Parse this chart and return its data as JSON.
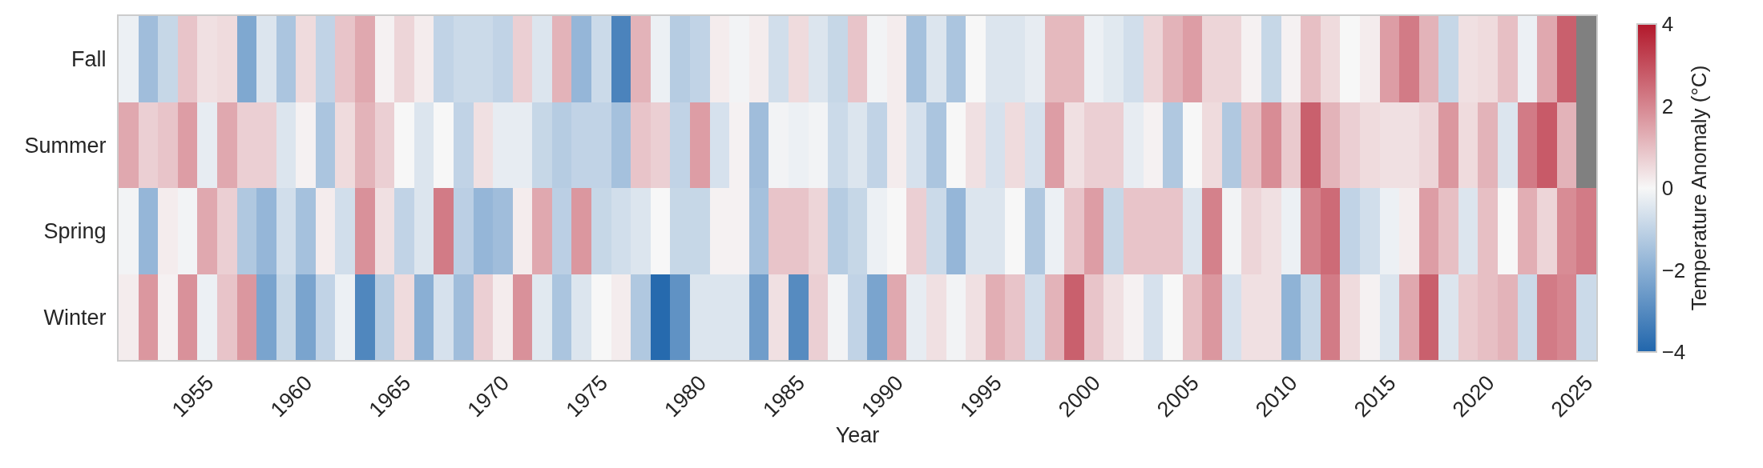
{
  "chart_data": {
    "type": "heatmap",
    "xlabel": "Year",
    "clabel": "Temperature Anomaly (°C)",
    "x": [
      1951,
      1952,
      1953,
      1954,
      1955,
      1956,
      1957,
      1958,
      1959,
      1960,
      1961,
      1962,
      1963,
      1964,
      1965,
      1966,
      1967,
      1968,
      1969,
      1970,
      1971,
      1972,
      1973,
      1974,
      1975,
      1976,
      1977,
      1978,
      1979,
      1980,
      1981,
      1982,
      1983,
      1984,
      1985,
      1986,
      1987,
      1988,
      1989,
      1990,
      1991,
      1992,
      1993,
      1994,
      1995,
      1996,
      1997,
      1998,
      1999,
      2000,
      2001,
      2002,
      2003,
      2004,
      2005,
      2006,
      2007,
      2008,
      2009,
      2010,
      2011,
      2012,
      2013,
      2014,
      2015,
      2016,
      2017,
      2018,
      2019,
      2020,
      2021,
      2022,
      2023,
      2024,
      2025
    ],
    "xlim": [
      1950.5,
      2025.5
    ],
    "xticks": [
      1955,
      1960,
      1965,
      1970,
      1975,
      1980,
      1985,
      1990,
      1995,
      2000,
      2005,
      2010,
      2015,
      2020,
      2025
    ],
    "y_categories": [
      "Fall",
      "Summer",
      "Spring",
      "Winter"
    ],
    "cells": [
      [
        -0.2,
        -1.6,
        -0.9,
        0.9,
        0.4,
        0.5,
        -2.2,
        -0.5,
        -1.4,
        0.5,
        -1.0,
        0.9,
        1.4,
        0.1,
        0.6,
        0.2,
        -1.0,
        -0.8,
        -0.8,
        -1.0,
        0.7,
        -0.5,
        1.2,
        -1.8,
        -0.8,
        -3.2,
        1.2,
        -0.2,
        -1.2,
        -1.0,
        0.2,
        -0.1,
        0.2,
        -0.7,
        0.5,
        -0.5,
        -0.9,
        0.9,
        -0.1,
        0.2,
        -1.5,
        -0.5,
        -1.4,
        0.0,
        -0.5,
        -0.5,
        -0.3,
        1.1,
        1.1,
        -0.2,
        -0.4,
        -0.7,
        0.6,
        1.2,
        1.6,
        0.6,
        0.6,
        0.1,
        -0.9,
        0.1,
        1.0,
        0.5,
        0.0,
        0.2,
        1.6,
        2.2,
        1.2,
        -0.9,
        0.4,
        0.5,
        1.0,
        -0.2,
        1.4,
        2.7,
        null
      ],
      [
        1.4,
        0.7,
        0.9,
        1.6,
        -0.3,
        1.4,
        0.7,
        0.7,
        -0.5,
        0.1,
        -1.4,
        0.5,
        1.2,
        0.7,
        0.0,
        -0.5,
        0.0,
        -1.0,
        0.4,
        -0.3,
        -0.3,
        -0.9,
        -1.2,
        -1.0,
        -1.0,
        -1.5,
        0.9,
        0.7,
        -1.0,
        1.6,
        -0.6,
        0.1,
        -1.6,
        -0.1,
        -0.2,
        -0.1,
        -0.8,
        -0.5,
        -1.0,
        0.2,
        -0.6,
        -1.4,
        0.0,
        0.4,
        -0.6,
        0.5,
        -0.6,
        1.6,
        0.4,
        0.7,
        0.7,
        -0.3,
        0.1,
        -1.3,
        0.0,
        0.5,
        -1.3,
        1.0,
        1.9,
        0.8,
        2.7,
        1.2,
        0.7,
        0.5,
        0.4,
        0.4,
        0.6,
        1.7,
        0.5,
        1.2,
        -0.5,
        2.2,
        2.8,
        1.2,
        null
      ],
      [
        -0.1,
        -1.8,
        0.2,
        -0.1,
        1.4,
        0.7,
        -1.3,
        -1.8,
        -0.7,
        -1.5,
        0.2,
        -0.7,
        1.8,
        0.4,
        -1.0,
        -0.5,
        2.2,
        -1.1,
        -1.8,
        -1.6,
        0.2,
        1.4,
        -1.1,
        1.7,
        -0.9,
        -0.7,
        -0.5,
        0.0,
        -0.9,
        -0.9,
        0.1,
        0.1,
        -1.5,
        0.9,
        0.9,
        0.6,
        -1.2,
        -0.9,
        -0.2,
        0.0,
        0.7,
        -0.8,
        -1.8,
        -0.5,
        -0.5,
        0.0,
        -1.3,
        -0.2,
        0.9,
        1.6,
        -0.9,
        0.9,
        0.9,
        0.9,
        -0.5,
        2.1,
        -0.1,
        0.6,
        0.4,
        -0.2,
        2.1,
        2.5,
        -1.0,
        -0.7,
        -0.2,
        0.2,
        1.6,
        1.0,
        -0.5,
        1.0,
        0.0,
        1.3,
        0.6,
        1.9,
        2.2
      ],
      [
        0.2,
        1.7,
        0.1,
        1.8,
        -0.2,
        0.9,
        1.7,
        -2.3,
        -0.9,
        -2.3,
        -1.0,
        -0.2,
        -3.1,
        -1.2,
        0.5,
        -2.0,
        -0.6,
        -1.6,
        0.7,
        0.2,
        1.8,
        -0.4,
        -1.4,
        -0.5,
        0.0,
        0.2,
        -1.3,
        -3.9,
        -2.8,
        -0.5,
        -0.5,
        -0.5,
        -2.5,
        0.4,
        -3.0,
        0.7,
        -0.1,
        -1.0,
        -2.3,
        1.4,
        -0.3,
        0.4,
        -0.1,
        0.4,
        1.3,
        0.9,
        -0.7,
        1.2,
        2.7,
        0.9,
        0.4,
        0.1,
        -0.6,
        0.0,
        1.0,
        1.7,
        -0.6,
        0.4,
        0.4,
        -1.9,
        -0.9,
        2.2,
        0.5,
        0.1,
        -0.5,
        1.4,
        2.7,
        -0.5,
        0.8,
        1.0,
        1.2,
        -0.8,
        2.2,
        2.0,
        -0.8
      ]
    ],
    "clim": [
      -4,
      4
    ],
    "cticks": [
      {
        "value": -4,
        "label": "−4"
      },
      {
        "value": -2,
        "label": "−2"
      },
      0,
      2,
      4
    ],
    "grid": false
  }
}
